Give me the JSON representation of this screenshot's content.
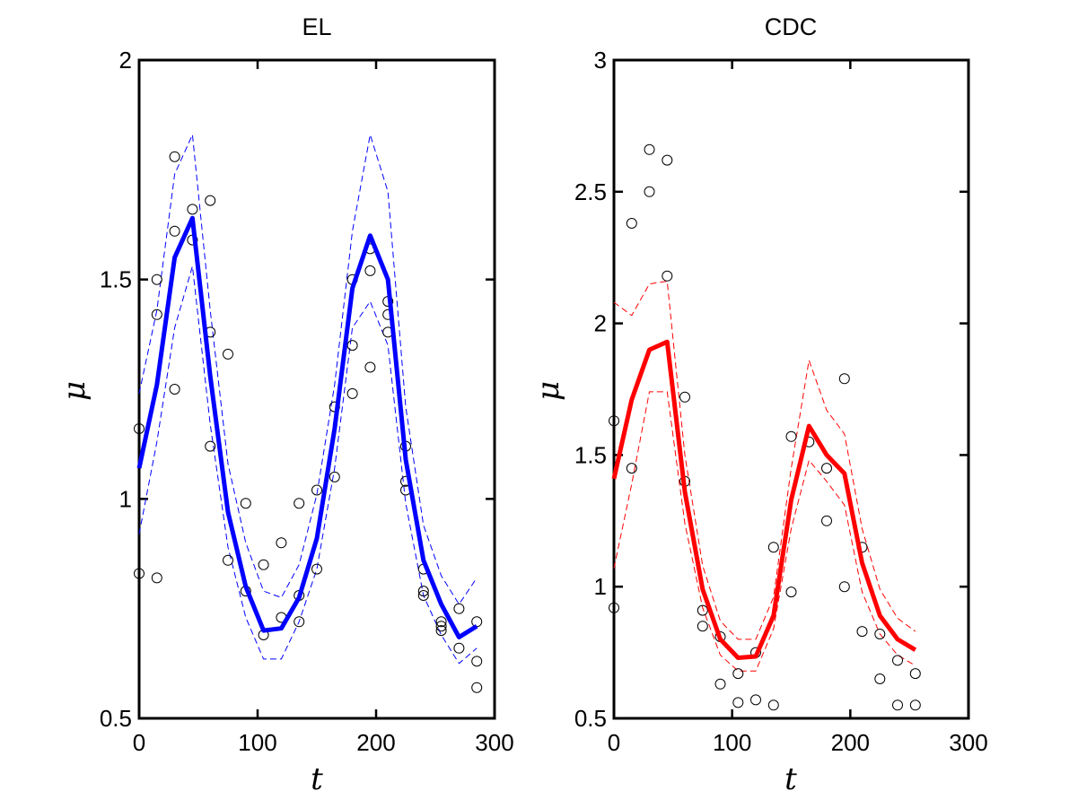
{
  "chart_data": [
    {
      "type": "line",
      "title": "EL",
      "xlabel": "t",
      "ylabel": "μ",
      "xlim": [
        0,
        300
      ],
      "ylim": [
        0.5,
        2
      ],
      "xticks": [
        "0",
        "100",
        "200",
        "300"
      ],
      "yticks": [
        "0.5",
        "1",
        "1.5",
        "2"
      ],
      "color": "#0000ff",
      "x": [
        0,
        15,
        30,
        45,
        60,
        75,
        90,
        105,
        120,
        135,
        150,
        165,
        180,
        195,
        210,
        225,
        240,
        255,
        270,
        285
      ],
      "mean": [
        1.07,
        1.26,
        1.55,
        1.64,
        1.28,
        0.97,
        0.8,
        0.7,
        0.705,
        0.775,
        0.91,
        1.16,
        1.48,
        1.6,
        1.5,
        1.09,
        0.86,
        0.76,
        0.685,
        0.71
      ],
      "upper": [
        1.24,
        1.43,
        1.74,
        1.83,
        1.43,
        1.08,
        0.9,
        0.79,
        0.775,
        0.85,
        1.01,
        1.26,
        1.61,
        1.83,
        1.7,
        1.21,
        0.94,
        0.825,
        0.76,
        0.82
      ],
      "lower": [
        0.92,
        1.13,
        1.39,
        1.53,
        1.17,
        0.89,
        0.73,
        0.635,
        0.635,
        0.72,
        0.84,
        1.07,
        1.39,
        1.45,
        1.35,
        0.99,
        0.78,
        0.69,
        0.625,
        0.66
      ],
      "observations": [
        [
          0,
          1.16
        ],
        [
          0,
          0.83
        ],
        [
          15,
          1.5
        ],
        [
          15,
          1.42
        ],
        [
          15,
          0.82
        ],
        [
          30,
          1.78
        ],
        [
          30,
          1.61
        ],
        [
          30,
          1.25
        ],
        [
          45,
          1.66
        ],
        [
          45,
          1.59
        ],
        [
          60,
          1.68
        ],
        [
          60,
          1.38
        ],
        [
          60,
          1.12
        ],
        [
          75,
          1.33
        ],
        [
          75,
          0.86
        ],
        [
          90,
          0.99
        ],
        [
          90,
          0.79
        ],
        [
          105,
          0.85
        ],
        [
          105,
          0.69
        ],
        [
          120,
          0.9
        ],
        [
          120,
          0.73
        ],
        [
          135,
          0.99
        ],
        [
          135,
          0.72
        ],
        [
          135,
          0.78
        ],
        [
          150,
          1.02
        ],
        [
          150,
          0.84
        ],
        [
          165,
          1.21
        ],
        [
          165,
          1.05
        ],
        [
          180,
          1.5
        ],
        [
          180,
          1.35
        ],
        [
          180,
          1.24
        ],
        [
          195,
          1.57
        ],
        [
          195,
          1.52
        ],
        [
          195,
          1.3
        ],
        [
          210,
          1.45
        ],
        [
          210,
          1.42
        ],
        [
          210,
          1.38
        ],
        [
          225,
          1.12
        ],
        [
          225,
          1.04
        ],
        [
          225,
          1.02
        ],
        [
          240,
          0.84
        ],
        [
          240,
          0.79
        ],
        [
          240,
          0.78
        ],
        [
          255,
          0.72
        ],
        [
          255,
          0.71
        ],
        [
          255,
          0.7
        ],
        [
          270,
          0.75
        ],
        [
          270,
          0.66
        ],
        [
          285,
          0.72
        ],
        [
          285,
          0.63
        ],
        [
          285,
          0.57
        ]
      ]
    },
    {
      "type": "line",
      "title": "CDC",
      "xlabel": "t",
      "ylabel": "μ",
      "xlim": [
        0,
        300
      ],
      "ylim": [
        0.5,
        3
      ],
      "xticks": [
        "0",
        "100",
        "200",
        "300"
      ],
      "yticks": [
        "0.5",
        "1",
        "1.5",
        "2",
        "2.5",
        "3"
      ],
      "color": "#ff0000",
      "x": [
        0,
        15,
        30,
        45,
        60,
        75,
        90,
        105,
        120,
        135,
        150,
        165,
        180,
        195,
        210,
        225,
        240,
        255
      ],
      "mean": [
        1.41,
        1.71,
        1.9,
        1.93,
        1.36,
        0.99,
        0.8,
        0.73,
        0.735,
        0.89,
        1.33,
        1.61,
        1.5,
        1.43,
        1.09,
        0.89,
        0.8,
        0.76
      ],
      "upper": [
        2.08,
        2.03,
        2.15,
        2.16,
        1.5,
        1.08,
        0.87,
        0.8,
        0.8,
        0.96,
        1.45,
        1.86,
        1.67,
        1.58,
        1.22,
        0.99,
        0.88,
        0.83
      ],
      "lower": [
        1.07,
        1.39,
        1.74,
        1.74,
        1.24,
        0.92,
        0.74,
        0.68,
        0.68,
        0.84,
        1.22,
        1.48,
        1.4,
        1.31,
        0.98,
        0.82,
        0.74,
        0.7
      ],
      "observations": [
        [
          0,
          1.63
        ],
        [
          0,
          0.92
        ],
        [
          15,
          2.38
        ],
        [
          15,
          1.45
        ],
        [
          30,
          2.66
        ],
        [
          30,
          2.5
        ],
        [
          45,
          2.62
        ],
        [
          45,
          2.18
        ],
        [
          60,
          1.72
        ],
        [
          60,
          1.4
        ],
        [
          75,
          0.91
        ],
        [
          75,
          0.85
        ],
        [
          90,
          0.81
        ],
        [
          90,
          0.63
        ],
        [
          105,
          0.67
        ],
        [
          105,
          0.56
        ],
        [
          120,
          0.75
        ],
        [
          120,
          0.57
        ],
        [
          135,
          1.15
        ],
        [
          135,
          0.55
        ],
        [
          150,
          1.57
        ],
        [
          150,
          0.98
        ],
        [
          165,
          1.55
        ],
        [
          180,
          1.45
        ],
        [
          180,
          1.25
        ],
        [
          195,
          1.79
        ],
        [
          195,
          1.0
        ],
        [
          210,
          1.15
        ],
        [
          210,
          0.83
        ],
        [
          225,
          0.82
        ],
        [
          225,
          0.65
        ],
        [
          240,
          0.72
        ],
        [
          240,
          0.55
        ],
        [
          255,
          0.67
        ],
        [
          255,
          0.55
        ]
      ]
    }
  ]
}
